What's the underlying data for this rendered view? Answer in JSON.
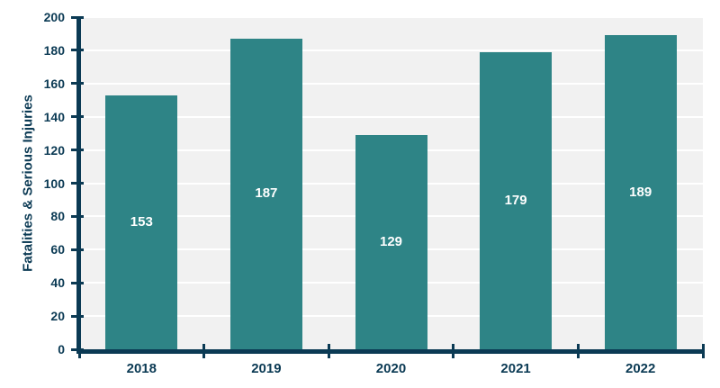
{
  "chart_data": {
    "type": "bar",
    "title": "",
    "xlabel": "",
    "ylabel": "Fatalities & Serious Injuries",
    "categories": [
      "2018",
      "2019",
      "2020",
      "2021",
      "2022"
    ],
    "values": [
      153,
      187,
      129,
      179,
      189
    ],
    "ylim": [
      0,
      200
    ],
    "yticks": [
      0,
      20,
      40,
      60,
      80,
      100,
      120,
      140,
      160,
      180,
      200
    ],
    "grid": true,
    "legend": false,
    "bar_label_position": "center-inside",
    "colors": {
      "bar": "#2E8486",
      "axis": "#0B3A54",
      "tick_label": "#0B3A54",
      "bar_label": "#FFFFFF",
      "plot_background": "#F1F1F1",
      "gridline": "#FFFFFF",
      "page_background": "#FFFFFF"
    }
  }
}
